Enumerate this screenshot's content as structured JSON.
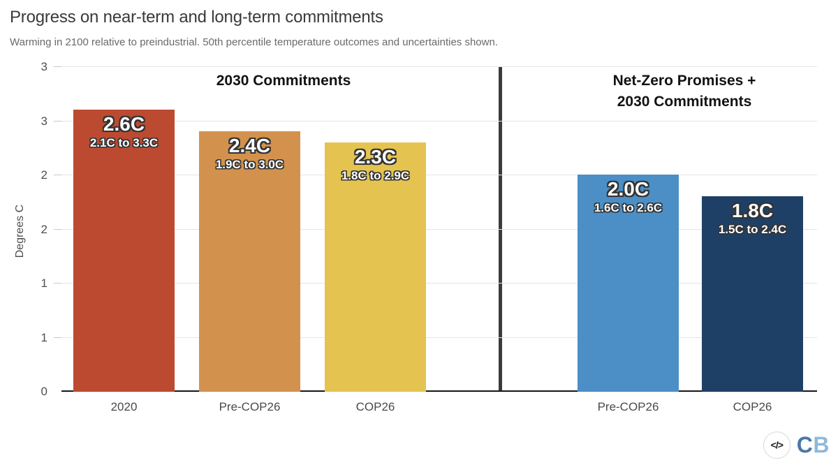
{
  "title": "Progress on near-term and long-term commitments",
  "subtitle": "Warming in 2100 relative to preindustrial. 50th percentile temperature outcomes and uncertainties shown.",
  "footer": {
    "embed_icon": "</>",
    "logo_c": "C",
    "logo_b": "B",
    "logo_c_color": "#4a78a8",
    "logo_b_color": "#8fb9dc"
  },
  "chart_data": {
    "type": "bar",
    "title": "Progress on near-term and long-term commitments",
    "xlabel": "",
    "ylabel": "Degrees C",
    "ylim": [
      0,
      3
    ],
    "grid": true,
    "yticks": [
      {
        "value": 0,
        "label": "0"
      },
      {
        "value": 0.5,
        "label": "1"
      },
      {
        "value": 1,
        "label": "1"
      },
      {
        "value": 1.5,
        "label": "2"
      },
      {
        "value": 2,
        "label": "2"
      },
      {
        "value": 2.5,
        "label": "3"
      },
      {
        "value": 3,
        "label": "3"
      }
    ],
    "sections": [
      {
        "header_lines": [
          "2030 Commitments"
        ],
        "bars": [
          {
            "category": "2020",
            "value": 2.6,
            "value_label": "2.6C",
            "range_low": 2.1,
            "range_high": 3.3,
            "range_label": "2.1C to 3.3C",
            "color": "#bc4a31"
          },
          {
            "category": "Pre-COP26",
            "value": 2.4,
            "value_label": "2.4C",
            "range_low": 1.9,
            "range_high": 3.0,
            "range_label": "1.9C to 3.0C",
            "color": "#d2924e"
          },
          {
            "category": "COP26",
            "value": 2.3,
            "value_label": "2.3C",
            "range_low": 1.8,
            "range_high": 2.9,
            "range_label": "1.8C to 2.9C",
            "color": "#e5c351"
          }
        ]
      },
      {
        "header_lines": [
          "Net-Zero Promises +",
          "2030 Commitments"
        ],
        "bars": [
          {
            "category": "Pre-COP26",
            "value": 2.0,
            "value_label": "2.0C",
            "range_low": 1.6,
            "range_high": 2.6,
            "range_label": "1.6C to 2.6C",
            "color": "#4b8fc6"
          },
          {
            "category": "COP26",
            "value": 1.8,
            "value_label": "1.8C",
            "range_low": 1.5,
            "range_high": 2.4,
            "range_label": "1.5C to 2.4C",
            "color": "#1f4066"
          }
        ]
      }
    ]
  }
}
